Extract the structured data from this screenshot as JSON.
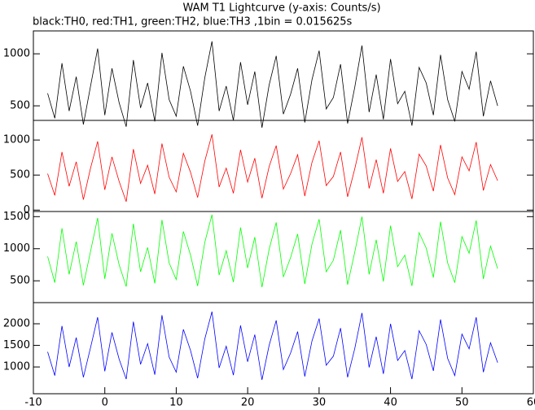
{
  "chart_data": [
    {
      "type": "line",
      "title": "WAM T1 Lightcurve (y-axis: Counts/s)",
      "subtitle": "black:TH0, red:TH1, green:TH2, blue:TH3 ,1bin = 0.015625s",
      "x": [
        -8,
        -7,
        -6,
        -5,
        -4,
        -3,
        -2,
        -1,
        0,
        1,
        2,
        3,
        4,
        5,
        6,
        7,
        8,
        9,
        10,
        11,
        12,
        13,
        14,
        15,
        16,
        17,
        18,
        19,
        20,
        21,
        22,
        23,
        24,
        25,
        26,
        27,
        28,
        29,
        30,
        31,
        32,
        33,
        34,
        35,
        36,
        37,
        38,
        39,
        40,
        41,
        42,
        43,
        44,
        45,
        46,
        47,
        48,
        49,
        50,
        51,
        52,
        53,
        54,
        55
      ],
      "xlim": [
        -10,
        60
      ],
      "ylim": [
        360,
        1220
      ],
      "yticks": [
        500,
        1000
      ],
      "series": [
        {
          "color": "#000000",
          "values": [
            620,
            380,
            910,
            450,
            780,
            320,
            690,
            1050,
            410,
            860,
            530,
            300,
            940,
            480,
            720,
            350,
            1010,
            560,
            400,
            880,
            640,
            310,
            770,
            1120,
            450,
            690,
            360,
            920,
            510,
            830,
            290,
            700,
            980,
            420,
            610,
            860,
            340,
            750,
            1030,
            470,
            580,
            900,
            330,
            680,
            1080,
            440,
            800,
            370,
            950,
            520,
            640,
            310,
            870,
            720,
            410,
            990,
            560,
            350,
            830,
            660,
            1020,
            400,
            740,
            500
          ]
        }
      ]
    },
    {
      "type": "line",
      "x": [
        -8,
        -7,
        -6,
        -5,
        -4,
        -3,
        -2,
        -1,
        0,
        1,
        2,
        3,
        4,
        5,
        6,
        7,
        8,
        9,
        10,
        11,
        12,
        13,
        14,
        15,
        16,
        17,
        18,
        19,
        20,
        21,
        22,
        23,
        24,
        25,
        26,
        27,
        28,
        29,
        30,
        31,
        32,
        33,
        34,
        35,
        36,
        37,
        38,
        39,
        40,
        41,
        42,
        43,
        44,
        45,
        46,
        47,
        48,
        49,
        50,
        51,
        52,
        53,
        54,
        55
      ],
      "xlim": [
        -10,
        60
      ],
      "ylim": [
        -20,
        1280
      ],
      "yticks": [
        0,
        500,
        1000
      ],
      "series": [
        {
          "color": "#ff0000",
          "values": [
            520,
            210,
            830,
            340,
            690,
            150,
            600,
            980,
            290,
            760,
            410,
            120,
            870,
            380,
            640,
            230,
            950,
            470,
            260,
            810,
            540,
            180,
            700,
            1080,
            330,
            600,
            240,
            860,
            400,
            740,
            170,
            620,
            920,
            300,
            520,
            790,
            200,
            680,
            990,
            350,
            480,
            830,
            190,
            590,
            1040,
            310,
            720,
            240,
            880,
            410,
            550,
            160,
            800,
            630,
            270,
            930,
            460,
            220,
            760,
            560,
            970,
            280,
            650,
            420
          ]
        }
      ]
    },
    {
      "type": "line",
      "x": [
        -8,
        -7,
        -6,
        -5,
        -4,
        -3,
        -2,
        -1,
        0,
        1,
        2,
        3,
        4,
        5,
        6,
        7,
        8,
        9,
        10,
        11,
        12,
        13,
        14,
        15,
        16,
        17,
        18,
        19,
        20,
        21,
        22,
        23,
        24,
        25,
        26,
        27,
        28,
        29,
        30,
        31,
        32,
        33,
        34,
        35,
        36,
        37,
        38,
        39,
        40,
        41,
        42,
        43,
        44,
        45,
        46,
        47,
        48,
        49,
        50,
        51,
        52,
        53,
        54,
        55
      ],
      "xlim": [
        -10,
        60
      ],
      "ylim": [
        160,
        1580
      ],
      "yticks": [
        500,
        1000,
        1500
      ],
      "series": [
        {
          "color": "#00ff00",
          "values": [
            880,
            470,
            1320,
            600,
            1110,
            430,
            960,
            1480,
            530,
            1240,
            750,
            410,
            1390,
            640,
            1020,
            460,
            1450,
            780,
            520,
            1270,
            900,
            420,
            1100,
            1530,
            590,
            970,
            480,
            1330,
            700,
            1180,
            400,
            990,
            1410,
            560,
            860,
            1230,
            450,
            1070,
            1460,
            640,
            820,
            1290,
            440,
            950,
            1500,
            600,
            1140,
            490,
            1360,
            720,
            900,
            420,
            1250,
            1010,
            550,
            1420,
            780,
            470,
            1190,
            930,
            1440,
            530,
            1040,
            690
          ]
        }
      ]
    },
    {
      "type": "line",
      "x": [
        -8,
        -7,
        -6,
        -5,
        -4,
        -3,
        -2,
        -1,
        0,
        1,
        2,
        3,
        4,
        5,
        6,
        7,
        8,
        9,
        10,
        11,
        12,
        13,
        14,
        15,
        16,
        17,
        18,
        19,
        20,
        21,
        22,
        23,
        24,
        25,
        26,
        27,
        28,
        29,
        30,
        31,
        32,
        33,
        34,
        35,
        36,
        37,
        38,
        39,
        40,
        41,
        42,
        43,
        44,
        45,
        46,
        47,
        48,
        49,
        50,
        51,
        52,
        53,
        54,
        55
      ],
      "xlim": [
        -10,
        60
      ],
      "xticks": [
        -10,
        0,
        10,
        20,
        30,
        40,
        50,
        60
      ],
      "ylim": [
        380,
        2490
      ],
      "yticks": [
        1000,
        1500,
        2000
      ],
      "series": [
        {
          "color": "#0000ff",
          "values": [
            1350,
            800,
            1950,
            1000,
            1680,
            760,
            1450,
            2150,
            900,
            1800,
            1180,
            720,
            2050,
            1060,
            1540,
            820,
            2200,
            1230,
            880,
            1870,
            1380,
            740,
            1650,
            2280,
            980,
            1480,
            810,
            1960,
            1120,
            1750,
            700,
            1500,
            2080,
            940,
            1320,
            1820,
            780,
            1600,
            2120,
            1040,
            1250,
            1900,
            760,
            1430,
            2250,
            990,
            1700,
            840,
            2000,
            1150,
            1380,
            720,
            1840,
            1520,
            910,
            2100,
            1200,
            800,
            1760,
            1420,
            2150,
            880,
            1560,
            1100
          ]
        }
      ]
    }
  ]
}
